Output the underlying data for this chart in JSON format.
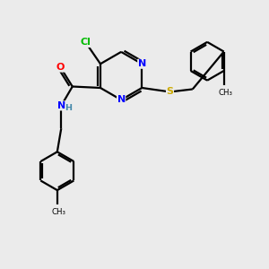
{
  "bg_color": "#ebebeb",
  "bond_color": "#000000",
  "bond_lw": 1.6,
  "atom_colors": {
    "N": "#0000ff",
    "O": "#ff0000",
    "Cl": "#00bb00",
    "S": "#ccaa00",
    "C": "#000000",
    "H": "#4488aa"
  },
  "font_size": 8.0,
  "fig_bg": "#ebebeb"
}
